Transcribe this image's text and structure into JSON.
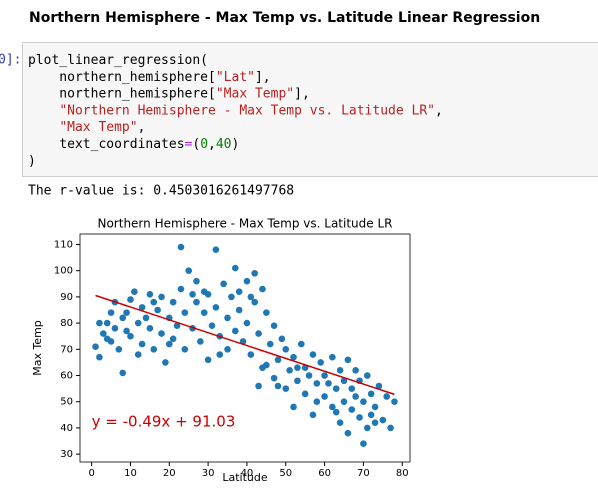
{
  "header": {
    "title": "Northern Hemisphere - Max Temp vs. Latitude Linear Regression"
  },
  "cell": {
    "prompt": "0]:",
    "lines": [
      [
        {
          "text": "plot_linear_regression(",
          "color": "#000000"
        }
      ],
      [
        {
          "text": "    northern_hemisphere[",
          "color": "#000000"
        },
        {
          "text": "\"Lat\"",
          "color": "#ba2121"
        },
        {
          "text": "],",
          "color": "#000000"
        }
      ],
      [
        {
          "text": "    northern_hemisphere[",
          "color": "#000000"
        },
        {
          "text": "\"Max Temp\"",
          "color": "#ba2121"
        },
        {
          "text": "],",
          "color": "#000000"
        }
      ],
      [
        {
          "text": "    ",
          "color": "#000000"
        },
        {
          "text": "\"Northern Hemisphere - Max Temp vs. Latitude LR\"",
          "color": "#ba2121"
        },
        {
          "text": ",",
          "color": "#000000"
        }
      ],
      [
        {
          "text": "    ",
          "color": "#000000"
        },
        {
          "text": "\"Max Temp\"",
          "color": "#ba2121"
        },
        {
          "text": ",",
          "color": "#000000"
        }
      ],
      [
        {
          "text": "    text_coordinates",
          "color": "#000000"
        },
        {
          "text": "=",
          "color": "#aa22ff"
        },
        {
          "text": "(",
          "color": "#000000"
        },
        {
          "text": "0",
          "color": "#008000"
        },
        {
          "text": ",",
          "color": "#000000"
        },
        {
          "text": "40",
          "color": "#008000"
        },
        {
          "text": ")",
          "color": "#000000"
        }
      ],
      [
        {
          "text": ")",
          "color": "#000000"
        }
      ]
    ],
    "output": "The r-value is: 0.4503016261497768"
  },
  "chart_data": {
    "type": "scatter",
    "title": "Northern Hemisphere - Max Temp vs. Latitude LR",
    "x_label": "Latitude",
    "y_label": "Max Temp",
    "color": "#1f77b4",
    "x": [
      1,
      2,
      3,
      4,
      5,
      5,
      6,
      6,
      7,
      8,
      8,
      9,
      10,
      10,
      11,
      12,
      13,
      13,
      14,
      15,
      15,
      16,
      17,
      18,
      18,
      19,
      20,
      21,
      21,
      22,
      23,
      23,
      24,
      24,
      25,
      26,
      27,
      27,
      28,
      29,
      30,
      30,
      31,
      32,
      32,
      33,
      34,
      35,
      35,
      36,
      37,
      37,
      38,
      39,
      40,
      40,
      41,
      42,
      42,
      43,
      43,
      44,
      44,
      45,
      46,
      47,
      47,
      48,
      49,
      50,
      50,
      51,
      52,
      52,
      53,
      54,
      55,
      55,
      56,
      57,
      57,
      58,
      59,
      60,
      60,
      61,
      62,
      62,
      63,
      64,
      64,
      65,
      66,
      66,
      67,
      67,
      68,
      68,
      69,
      69,
      70,
      70,
      71,
      72,
      72,
      73,
      74,
      75,
      76,
      77,
      78,
      2,
      4,
      9,
      12,
      16,
      20,
      26,
      29,
      33,
      38,
      41,
      45,
      48,
      53,
      58,
      63,
      65,
      71,
      73
    ],
    "y": [
      71,
      67,
      76,
      80,
      84,
      73,
      88,
      78,
      70,
      61,
      82,
      77,
      89,
      75,
      92,
      80,
      72,
      86,
      82,
      78,
      91,
      70,
      85,
      76,
      90,
      65,
      82,
      74,
      88,
      79,
      109,
      93,
      84,
      70,
      100,
      78,
      88,
      96,
      73,
      84,
      91,
      66,
      79,
      108,
      86,
      75,
      95,
      82,
      70,
      90,
      101,
      77,
      85,
      73,
      96,
      80,
      68,
      99,
      88,
      76,
      56,
      93,
      63,
      84,
      72,
      59,
      79,
      66,
      74,
      55,
      70,
      62,
      48,
      67,
      58,
      72,
      53,
      63,
      60,
      45,
      68,
      57,
      65,
      52,
      60,
      57,
      48,
      67,
      55,
      42,
      62,
      58,
      66,
      38,
      47,
      55,
      52,
      62,
      44,
      58,
      34,
      50,
      60,
      45,
      53,
      48,
      56,
      43,
      52,
      40,
      50,
      80,
      74,
      84,
      68,
      88,
      72,
      91,
      92,
      68,
      92,
      90,
      64,
      56,
      63,
      50,
      46,
      50,
      40,
      42
    ],
    "regression": {
      "slope": -0.49,
      "intercept": 91.03,
      "color": "#cc0000"
    },
    "annotation": {
      "text": "y = -0.49x + 91.03",
      "x": 0,
      "y": 40,
      "color": "#cc0000"
    },
    "xlim": [
      -3,
      82
    ],
    "ylim": [
      27,
      114
    ],
    "xticks": [
      0,
      10,
      20,
      30,
      40,
      50,
      60,
      70,
      80
    ],
    "yticks": [
      30,
      40,
      50,
      60,
      70,
      80,
      90,
      100,
      110
    ]
  }
}
